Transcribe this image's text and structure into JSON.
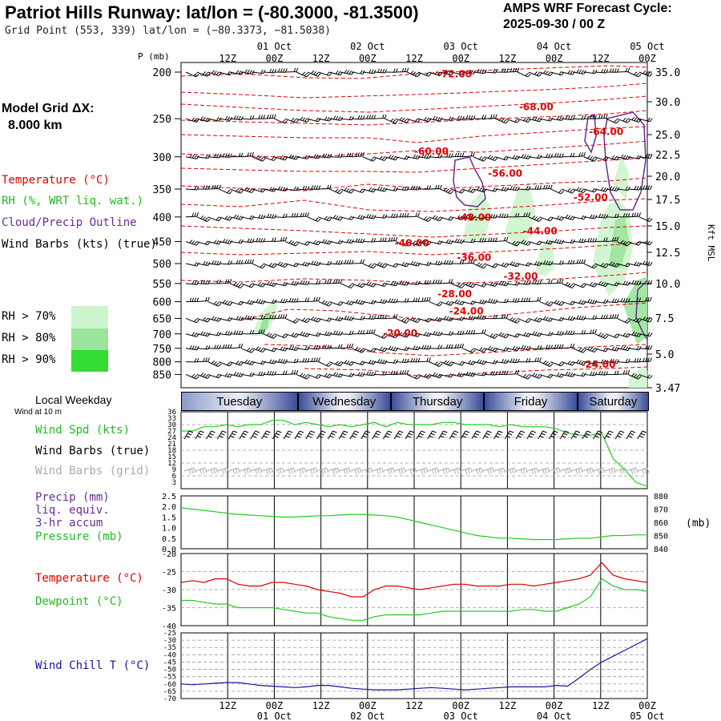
{
  "header": {
    "title": "Patriot Hills Runway:  lat/lon = (-80.3000, -81.3500)",
    "subtitle": "Grid Point (553, 339) lat/lon = (−80.3373, −81.5038)",
    "cycle_line1": "AMPS WRF Forecast Cycle:",
    "cycle_line2": "2025-09-30 / 00  Z"
  },
  "left_legend": {
    "model_grid_line1": "Model Grid ΔX:",
    "model_grid_line2": "8.000 km",
    "temperature": "Temperature (°C)",
    "rh": "RH (%, WRT liq. wat.)",
    "cloud": "Cloud/Precip Outline",
    "wind_barbs": "Wind Barbs (kts) (true)",
    "rh70": "RH > 70%",
    "rh80": "RH > 80%",
    "rh90": "RH > 90%",
    "local_weekday": "Local Weekday",
    "wind_at_10m": "Wind at 10 m",
    "wind_spd": "Wind Spd (kts)",
    "wind_barbs_true": "Wind Barbs (true)",
    "wind_barbs_grid": "Wind Barbs (grid)",
    "precip1": "Precip (mm)",
    "precip2": "liq. equiv.",
    "precip3": "3-hr accum",
    "pressure": "Pressure (mb)",
    "temp2": "Temperature (°C)",
    "dewpoint": "Dewpoint (°C)",
    "windchill": "Wind Chill T (°C)"
  },
  "colors": {
    "temperature": "#e00000",
    "cloud": "#6a2c91",
    "wind": "#000000",
    "grid_wind": "#aaaaaa",
    "rh70": "#cdf5cd",
    "rh80": "#9be49b",
    "rh90": "#33dd33",
    "dewpoint": "#22cc22",
    "windchill": "#1515aa",
    "pressure": "#22cc22",
    "windspd": "#22cc22"
  },
  "time_axis": {
    "top_dates": [
      "01 Oct",
      "02 Oct",
      "03 Oct",
      "04 Oct",
      "05 Oct"
    ],
    "top_hours": [
      "12Z",
      "00Z",
      "12Z",
      "00Z",
      "12Z",
      "00Z",
      "12Z",
      "00Z",
      "12Z",
      "00Z"
    ],
    "bottom_hours": [
      "12Z",
      "00Z",
      "12Z",
      "00Z",
      "12Z",
      "00Z",
      "12Z",
      "00Z",
      "12Z",
      "00Z"
    ],
    "bottom_dates": [
      "01 Oct",
      "02 Oct",
      "03 Oct",
      "04 Oct",
      "05 Oct"
    ],
    "weekdays": [
      "Tuesday",
      "Wednesday",
      "Thursday",
      "Friday",
      "Saturday"
    ]
  },
  "chart_data": [
    {
      "type": "line",
      "panel": "vertical cross-section",
      "pressure_label": "P (mb)",
      "height_label": "Kft MSL",
      "pressure_ticks": [
        "200",
        "250",
        "300",
        "350",
        "400",
        "450",
        "500",
        "550",
        "600",
        "650",
        "700",
        "750",
        "800",
        "850"
      ],
      "height_ticks": [
        "35.0",
        "30.0",
        "25.0",
        "22.5",
        "20.0",
        "17.5",
        "15.0",
        "12.5",
        "10.0",
        "7.5",
        "5.0",
        "3.47"
      ],
      "temperature_contour_labels": [
        {
          "label": "-72.00",
          "t": 66,
          "p": 205
        },
        {
          "label": "-68.00",
          "t": 87,
          "p": 240
        },
        {
          "label": "-64.00",
          "t": 105,
          "p": 270
        },
        {
          "label": "-60.00",
          "t": 60,
          "p": 297
        },
        {
          "label": "-56.00",
          "t": 79,
          "p": 330
        },
        {
          "label": "-52.00",
          "t": 101,
          "p": 370
        },
        {
          "label": "-48.00",
          "t": 71,
          "p": 407
        },
        {
          "label": "-44.00",
          "t": 88,
          "p": 435
        },
        {
          "label": "-40.00",
          "t": 55,
          "p": 460
        },
        {
          "label": "-36.00",
          "t": 71,
          "p": 493
        },
        {
          "label": "-32.00",
          "t": 83,
          "p": 540
        },
        {
          "label": "-28.00",
          "t": 66,
          "p": 587
        },
        {
          "label": "-24.00",
          "t": 69,
          "p": 638
        },
        {
          "label": "-20.00",
          "t": 52,
          "p": 708
        },
        {
          "label": "-24.00",
          "t": 103,
          "p": 823
        }
      ]
    },
    {
      "type": "line",
      "panel": "wind at 10 m",
      "y_ticks": [
        3,
        6,
        9,
        12,
        15,
        18,
        21,
        24,
        27,
        30,
        33,
        36
      ],
      "ylim": [
        0,
        36
      ],
      "series": [
        {
          "values": [
            27,
            27,
            29,
            29,
            30,
            29,
            30,
            30,
            32,
            32,
            30,
            31,
            30,
            29,
            30,
            29,
            30,
            31,
            29,
            31,
            30,
            30,
            30,
            31,
            31,
            30,
            30,
            30,
            29,
            30,
            29,
            29,
            29,
            28,
            26,
            25,
            25,
            26,
            14,
            9,
            3,
            1
          ]
        }
      ]
    },
    {
      "type": "line",
      "panel": "precip and pressure",
      "left_ticks": [
        "0.0",
        "0.5",
        "1.0",
        "1.5",
        "2.0",
        "2.5"
      ],
      "right_ticks": [
        "840",
        "850",
        "860",
        "870",
        "880"
      ],
      "right_unit": "(mb)",
      "ylim_pressure": [
        840,
        880
      ],
      "series": [
        {
          "values": [
            871,
            870,
            869,
            868,
            867,
            866,
            865.5,
            865,
            864.5,
            864,
            864,
            864.5,
            865,
            865,
            865.5,
            866,
            866,
            865.5,
            865,
            864,
            862,
            860,
            858,
            856,
            854,
            852,
            850,
            849,
            848,
            848,
            847.5,
            847,
            847,
            847,
            847.5,
            848,
            848,
            849,
            850,
            850,
            850.5,
            850.5
          ]
        }
      ]
    },
    {
      "type": "line",
      "panel": "temperature and dewpoint",
      "y_ticks": [
        "-20",
        "-25",
        "-30",
        "-35",
        "-40"
      ],
      "ylim": [
        -40,
        -20
      ],
      "series": [
        {
          "values": [
            -28,
            -27.5,
            -28,
            -27,
            -27,
            -28.5,
            -29,
            -29,
            -28,
            -28,
            -28.5,
            -29,
            -30,
            -30.5,
            -31,
            -32,
            -32,
            -30,
            -29,
            -29,
            -29.5,
            -30,
            -29.5,
            -29,
            -28.5,
            -28.5,
            -29,
            -29,
            -29,
            -28.5,
            -28.5,
            -29,
            -28.5,
            -28,
            -27.5,
            -27,
            -26,
            -22.5,
            -26,
            -27,
            -27.5,
            -28
          ]
        },
        {
          "values": [
            -33,
            -33,
            -33.5,
            -34,
            -34,
            -35,
            -35,
            -35,
            -35,
            -35.5,
            -36,
            -36.5,
            -36.5,
            -37.5,
            -38,
            -38.5,
            -38.5,
            -37.5,
            -37,
            -37,
            -37,
            -37,
            -36.5,
            -36,
            -36,
            -36,
            -36,
            -36,
            -36,
            -36,
            -35.5,
            -35.5,
            -36,
            -36,
            -35,
            -34,
            -32,
            -27,
            -29,
            -30,
            -30,
            -30.5
          ]
        }
      ]
    },
    {
      "type": "line",
      "panel": "wind chill",
      "y_ticks": [
        "-25",
        "-30",
        "-35",
        "-40",
        "-45",
        "-50",
        "-55",
        "-60",
        "-65",
        "-70"
      ],
      "ylim": [
        -70,
        -25
      ],
      "series": [
        {
          "values": [
            -60,
            -60.5,
            -60,
            -59.5,
            -59,
            -59,
            -60,
            -61,
            -61.5,
            -62,
            -62.5,
            -62,
            -61,
            -61,
            -62,
            -63,
            -63.5,
            -64,
            -64,
            -64,
            -63.5,
            -63,
            -62.5,
            -63,
            -63.5,
            -64,
            -63.5,
            -63,
            -62.5,
            -62,
            -62,
            -62,
            -62,
            -61,
            -61.5,
            -56,
            -50,
            -45,
            -41,
            -37,
            -33,
            -29
          ]
        }
      ]
    }
  ]
}
